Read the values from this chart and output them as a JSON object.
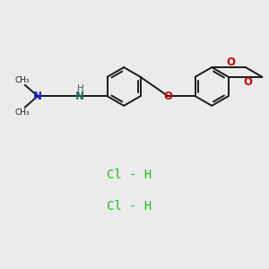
{
  "background_color": "#ebebeb",
  "bond_color": "#1a1a1a",
  "nitrogen_color": "#2222cc",
  "oxygen_color": "#cc0000",
  "nh_color": "#336666",
  "hcl_color": "#22bb22",
  "bond_width": 1.4,
  "figsize": [
    3.0,
    3.0
  ],
  "dpi": 100,
  "xlim": [
    0,
    10
  ],
  "ylim": [
    0,
    10
  ]
}
